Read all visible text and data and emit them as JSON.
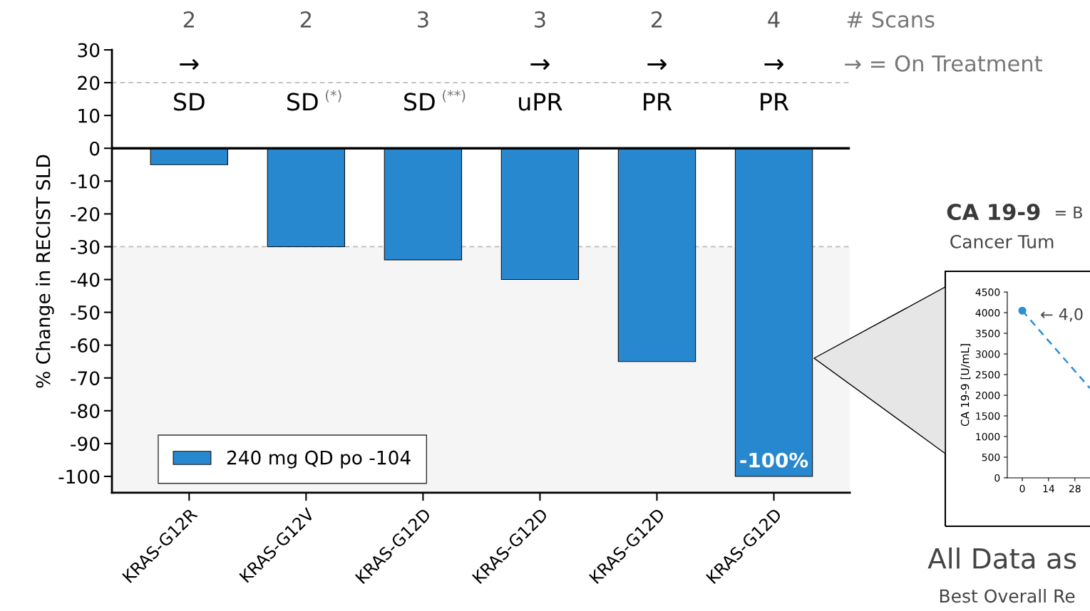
{
  "chart_data": [
    {
      "type": "bar",
      "ylabel": "% Change in RECIST SLD",
      "categories": [
        "KRAS-G12R",
        "KRAS-G12V",
        "KRAS-G12D",
        "KRAS-G12D",
        "KRAS-G12D",
        "KRAS-G12D"
      ],
      "series": [
        {
          "name": "240 mg QD po -104",
          "color": "#2888cf",
          "values": [
            -5,
            -30,
            -34,
            -40,
            -65,
            -100
          ],
          "value_labels": [
            null,
            null,
            null,
            null,
            null,
            "-100%"
          ]
        }
      ],
      "ylim": [
        -105,
        30
      ],
      "yticks": [
        -100,
        -90,
        -80,
        -70,
        -60,
        -50,
        -40,
        -30,
        -20,
        -10,
        0,
        10,
        20,
        30
      ],
      "ref_lines": [
        {
          "axis": "y",
          "value": 20,
          "color": "#bbbbbb",
          "line_style": "dashed"
        },
        {
          "axis": "y",
          "value": -30,
          "color": "#bbbbbb",
          "line_style": "dashed"
        },
        {
          "axis": "y",
          "value": 0,
          "color": "#000000",
          "line_style": "solid"
        }
      ],
      "bands": [
        {
          "axis": "y",
          "from": -105,
          "to": -30,
          "color": "#f5f5f5"
        }
      ],
      "legend": "bottom left",
      "grid": false,
      "annotations": [
        "2",
        "2",
        "3",
        "3",
        "2",
        "4",
        "# Scans",
        "→",
        "→",
        "→",
        "→",
        "→ = On Treatment",
        "SD",
        "SD",
        "(*)",
        "SD",
        "(**)",
        "uPR",
        "PR",
        "PR"
      ]
    },
    {
      "type": "line",
      "title": "CA 19-9",
      "subtitle": "Cancer Tum",
      "ylabel": "CA 19-9 [U/mL]",
      "series": [
        {
          "color": "#2a8fd6",
          "x": [
            0,
            36
          ],
          "values": [
            4050,
            2170
          ]
        }
      ],
      "xlim": [
        -8,
        36
      ],
      "xticks": [
        0,
        14,
        28
      ],
      "ylim": [
        0,
        4500
      ],
      "yticks": [
        0,
        500,
        1000,
        1500,
        2000,
        2500,
        3000,
        3500,
        4000,
        4500
      ],
      "marker": "circle",
      "line_style": "dashed",
      "grid": false,
      "annotations": [
        {
          "text": "← 4,0",
          "x": 0,
          "y": 4050
        },
        "= B",
        "All Data as",
        "Best Overall Re"
      ]
    }
  ]
}
